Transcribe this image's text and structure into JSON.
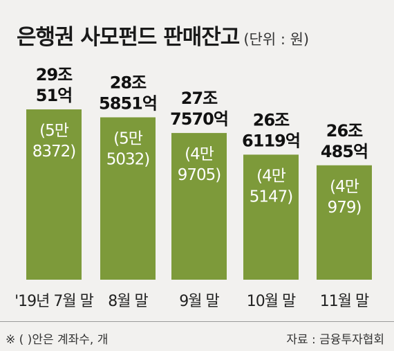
{
  "header": {
    "title": "은행권 사모펀드 판매잔고",
    "unit": "(단위 : 원)"
  },
  "footer": {
    "note": "※ (  )안은 계좌수, 개",
    "source": "자료 :  금융투자협회"
  },
  "colors": {
    "bar": "#7d9a3a",
    "background": "#f2f1ef",
    "label_inside": "#ffffff",
    "label_top": "#111111"
  },
  "chart_data": {
    "type": "bar",
    "title": "은행권 사모펀드 판매잔고",
    "unit": "(단위 : 원)",
    "categories": [
      "'19년 7월 말",
      "8월 말",
      "9월 말",
      "10월 말",
      "11월 말"
    ],
    "values": [
      290051,
      285851,
      277570,
      266119,
      260485
    ],
    "value_unit": "억 원",
    "value_labels": [
      [
        "29조",
        "51억"
      ],
      [
        "28조",
        "5851억"
      ],
      [
        "27조",
        "7570억"
      ],
      [
        "26조",
        "6119억"
      ],
      [
        "26조",
        "485억"
      ]
    ],
    "accounts": [
      58372,
      55032,
      49705,
      45147,
      40979
    ],
    "account_labels": [
      [
        "(5만",
        "8372)"
      ],
      [
        "(5만",
        "5032)"
      ],
      [
        "(4만",
        "9705)"
      ],
      [
        "(4만",
        "5147)"
      ],
      [
        "(4만",
        "979)"
      ]
    ],
    "grid": false,
    "legend": "none"
  }
}
